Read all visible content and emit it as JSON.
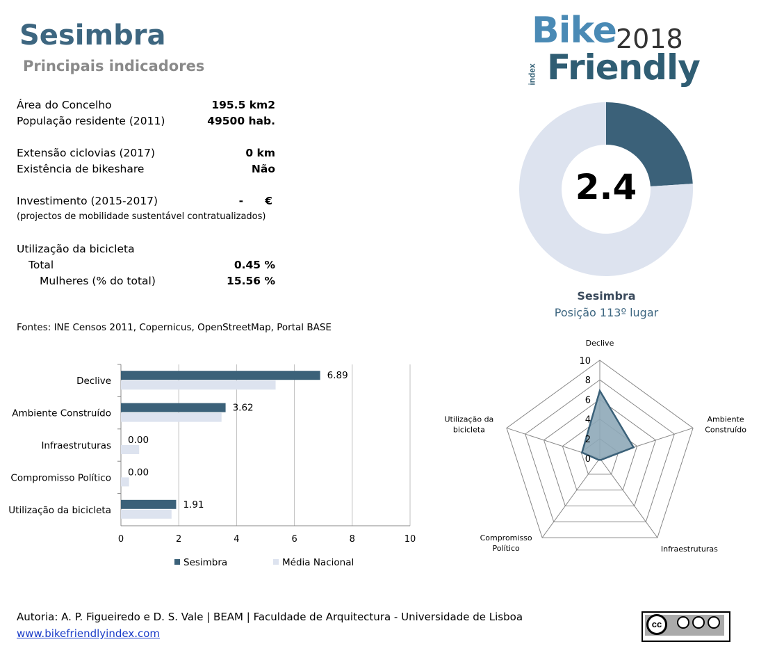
{
  "header": {
    "title": "Sesimbra",
    "subtitle": "Principais indicadores"
  },
  "logo": {
    "word1": "Bike",
    "year": "2018",
    "word2": "Friendly",
    "index": "index"
  },
  "indicators": [
    {
      "label": "Área do Concelho",
      "value": "195.5 km2"
    },
    {
      "label": "População residente (2011)",
      "value": "49500 hab."
    },
    {
      "label": "Extensão ciclovias (2017)",
      "value": "0 km"
    },
    {
      "label": "Existência de bikeshare",
      "value": "Não"
    },
    {
      "label": "Investimento (2015-2017)",
      "value": "-",
      "unit": "€"
    },
    {
      "label": "Utilização da bicicleta",
      "value": ""
    },
    {
      "label": "Total",
      "value": "0.45 %"
    },
    {
      "label": "Mulheres (% do total)",
      "value": "15.56 %"
    }
  ],
  "investment_note": "(projectos de mobilidade sustentável contratualizados)",
  "sources": "Fontes: INE Censos 2011, Copernicus, OpenStreetMap,  Portal BASE",
  "summary": {
    "score": "2.4",
    "municipality": "Sesimbra",
    "rank": "Posição 113º lugar"
  },
  "footer": {
    "authors": "Autoria: A. P. Figueiredo e D. S. Vale | BEAM | Faculdade de Arquitectura - Universidade de Lisboa",
    "link": "www.bikefriendlyindex.com"
  },
  "colors": {
    "primary": "#3b6179",
    "light": "#dde3ef",
    "grid": "#bfbfbf"
  },
  "chart_data": [
    {
      "type": "pie",
      "title": "",
      "center_label": "2.4",
      "slices": [
        {
          "name": "",
          "value": 2.4,
          "color": "#3b6179"
        },
        {
          "name": "",
          "value": 7.6,
          "color": "#dde3ef"
        }
      ]
    },
    {
      "type": "bar",
      "orientation": "horizontal",
      "categories": [
        "Declive",
        "Ambiente Construído",
        "Infraestruturas",
        "Compromisso Político",
        "Utilização da bicicleta"
      ],
      "series": [
        {
          "name": "Sesimbra",
          "values": [
            6.89,
            3.62,
            0.0,
            0.0,
            1.91
          ],
          "labels": [
            "6.89",
            "3.62",
            "0.00",
            "0.00",
            "1.91"
          ],
          "color": "#3b6179"
        },
        {
          "name": "Média Nacional",
          "values": [
            5.35,
            3.48,
            0.63,
            0.28,
            1.75
          ],
          "color": "#dde3ef"
        }
      ],
      "xlim": [
        0,
        10
      ],
      "xticks": [
        "0",
        "2",
        "4",
        "6",
        "8",
        "10"
      ],
      "grid": true,
      "legend": "bottom"
    },
    {
      "type": "radar",
      "axes": [
        "Declive",
        "Ambiente Construído",
        "Infraestruturas",
        "Compromisso Político",
        "Utilização da bicicleta"
      ],
      "axis_labels": [
        [
          "Declive"
        ],
        [
          "Ambiente",
          "Construído"
        ],
        [
          "Infraestruturas"
        ],
        [
          "Compromisso",
          "Político"
        ],
        [
          "Utilização da",
          "bicicleta"
        ]
      ],
      "rticks": [
        "0",
        "2",
        "4",
        "6",
        "8",
        "10"
      ],
      "rlim": [
        0,
        10
      ],
      "series": [
        {
          "name": "Sesimbra",
          "values": [
            6.89,
            3.62,
            0.0,
            0.0,
            1.91
          ],
          "color": "#3b6179",
          "fill": "#8ea8b8"
        }
      ]
    }
  ]
}
